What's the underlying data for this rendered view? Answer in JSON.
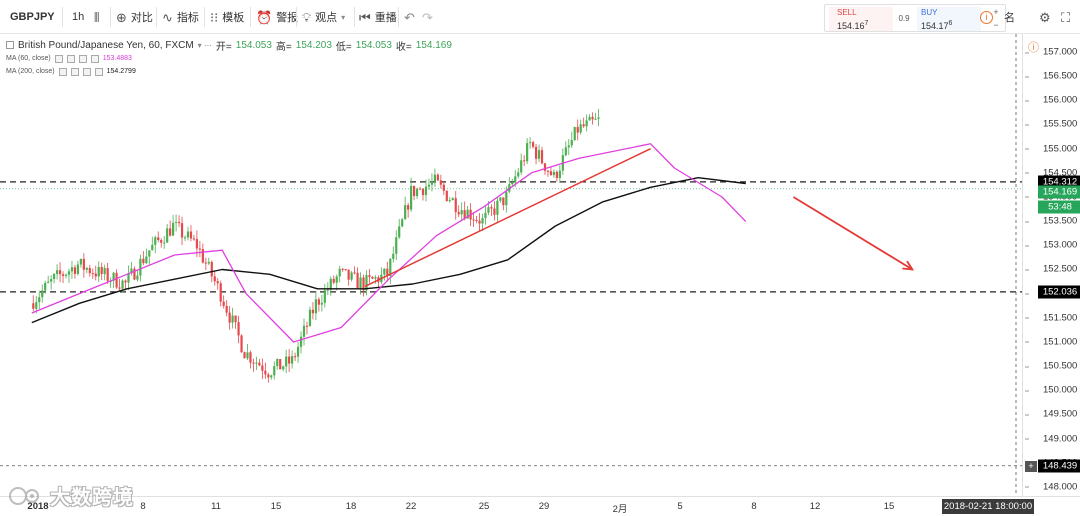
{
  "toolbar": {
    "symbol": "GBPJPY",
    "interval": "1h",
    "compare_label": "对比",
    "indicators_label": "指标",
    "templates_label": "模板",
    "alert_label": "警报",
    "ideas_label": "观点",
    "replay_label": "重播",
    "partial_label": "名",
    "undo_icon": "undo-icon",
    "redo_icon": "redo-icon"
  },
  "trade": {
    "sell_label": "SELL",
    "sell_price": "154.16",
    "sell_sup": "7",
    "spread": "0.9",
    "buy_label": "BUY",
    "buy_price": "154.17",
    "buy_sup": "6",
    "plus": "+",
    "minus": "−"
  },
  "legend": {
    "title": "British Pound/Japanese Yen, 60, FXCM",
    "open_label": "开=",
    "open": "154.053",
    "high_label": "高=",
    "high": "154.203",
    "low_label": "低=",
    "low": "154.053",
    "close_label": "收=",
    "close": "154.169",
    "ma60_label": "MA (60, close)",
    "ma60_value": "153.4883",
    "ma200_label": "MA (200, close)",
    "ma200_value": "154.2799"
  },
  "price_scale": {
    "ticks": [
      "157.000",
      "156.500",
      "156.000",
      "155.500",
      "155.000",
      "154.500",
      "154.000",
      "153.500",
      "153.000",
      "152.500",
      "152.000",
      "151.500",
      "151.000",
      "150.500",
      "150.000",
      "149.500",
      "149.000",
      "148.500",
      "148.000"
    ],
    "upper_line": "154.312",
    "current": "154.169",
    "timer": "53:48",
    "lower_line": "152.036",
    "crosshair": "148.439"
  },
  "time_scale": {
    "labels": [
      "2018",
      "8",
      "11",
      "15",
      "18",
      "22",
      "25",
      "29",
      "2月",
      "5",
      "8",
      "12",
      "15"
    ],
    "crosshair_time": "2018-02-21 18:00:00"
  },
  "watermark": {
    "text": "大数跨境"
  },
  "colors": {
    "up": "#4caf50",
    "down": "#e5484d",
    "ma60": "#e040e0",
    "ma200": "#111111",
    "trendline": "#e53935",
    "current_price": "#26a65b"
  },
  "chart_data": {
    "type": "candlestick",
    "symbol": "GBPJPY",
    "timeframe": "60",
    "source": "FXCM",
    "ylim": [
      147.8,
      157.4
    ],
    "last": {
      "open": 154.053,
      "high": 154.203,
      "low": 154.053,
      "close": 154.169
    },
    "horizontal_levels": [
      154.312,
      152.036,
      148.439
    ],
    "ma60_last": 153.4883,
    "ma200_last": 154.2799,
    "close_path": [
      [
        "2018-01-02",
        151.8
      ],
      [
        "2018-01-03",
        152.3
      ],
      [
        "2018-01-04",
        152.6
      ],
      [
        "2018-01-05",
        152.4
      ],
      [
        "2018-01-06",
        152.2
      ],
      [
        "2018-01-07",
        152.9
      ],
      [
        "2018-01-08",
        153.4
      ],
      [
        "2018-01-09",
        153.0
      ],
      [
        "2018-01-10",
        152.0
      ],
      [
        "2018-01-11",
        150.8
      ],
      [
        "2018-01-12",
        150.4
      ],
      [
        "2018-01-13",
        150.6
      ],
      [
        "2018-01-14",
        151.8
      ],
      [
        "2018-01-15",
        152.4
      ],
      [
        "2018-01-16",
        152.2
      ],
      [
        "2018-01-17",
        152.4
      ],
      [
        "2018-01-18",
        154.1
      ],
      [
        "2018-01-19",
        154.3
      ],
      [
        "2018-01-20",
        153.8
      ],
      [
        "2018-01-21",
        153.5
      ],
      [
        "2018-01-22",
        154.0
      ],
      [
        "2018-01-23",
        155.1
      ],
      [
        "2018-01-24",
        154.4
      ],
      [
        "2018-01-25",
        155.4
      ],
      [
        "2018-01-26",
        155.6
      ],
      [
        "2018-01-27",
        155.4
      ],
      [
        "2018-01-28",
        155.3
      ],
      [
        "2018-01-29",
        153.8
      ],
      [
        "2018-01-30",
        153.2
      ],
      [
        "2018-01-31",
        152.5
      ],
      [
        "2018-02-01",
        154.17
      ]
    ],
    "ma60": [
      [
        "2018-01-02",
        151.6
      ],
      [
        "2018-01-04",
        152.0
      ],
      [
        "2018-01-06",
        152.4
      ],
      [
        "2018-01-08",
        152.8
      ],
      [
        "2018-01-10",
        152.9
      ],
      [
        "2018-01-11",
        152.0
      ],
      [
        "2018-01-13",
        151.0
      ],
      [
        "2018-01-15",
        151.3
      ],
      [
        "2018-01-17",
        152.3
      ],
      [
        "2018-01-19",
        153.2
      ],
      [
        "2018-01-21",
        153.8
      ],
      [
        "2018-01-23",
        154.5
      ],
      [
        "2018-01-25",
        154.8
      ],
      [
        "2018-01-28",
        155.1
      ],
      [
        "2018-01-29",
        154.6
      ],
      [
        "2018-01-31",
        154.0
      ],
      [
        "2018-02-01",
        153.49
      ]
    ],
    "ma200": [
      [
        "2018-01-02",
        151.4
      ],
      [
        "2018-01-04",
        151.8
      ],
      [
        "2018-01-06",
        152.1
      ],
      [
        "2018-01-08",
        152.3
      ],
      [
        "2018-01-10",
        152.5
      ],
      [
        "2018-01-12",
        152.4
      ],
      [
        "2018-01-14",
        152.1
      ],
      [
        "2018-01-16",
        152.1
      ],
      [
        "2018-01-18",
        152.2
      ],
      [
        "2018-01-20",
        152.4
      ],
      [
        "2018-01-22",
        152.7
      ],
      [
        "2018-01-24",
        153.4
      ],
      [
        "2018-01-26",
        153.9
      ],
      [
        "2018-01-28",
        154.2
      ],
      [
        "2018-01-30",
        154.4
      ],
      [
        "2018-02-01",
        154.28
      ]
    ],
    "trendline": [
      [
        "2018-01-16",
        152.15
      ],
      [
        "2018-01-28",
        155.0
      ]
    ],
    "forecast_arrow": [
      [
        "2018-02-03",
        154.0
      ],
      [
        "2018-02-08",
        152.5
      ]
    ],
    "x_ticks": [
      "2018",
      "8",
      "11",
      "15",
      "18",
      "22",
      "25",
      "29",
      "2月",
      "5",
      "8",
      "12",
      "15"
    ]
  }
}
